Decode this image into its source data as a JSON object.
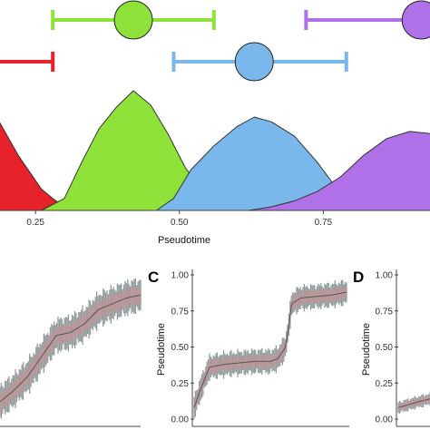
{
  "colors": {
    "red": "#e8222a",
    "green": "#8ee23a",
    "blue": "#7ab7ea",
    "purple": "#b071e8",
    "axis": "#444444",
    "box_fill": "#b99497",
    "whisker": "#8f9a9a",
    "median": "#555555"
  },
  "chart_data": [
    {
      "panel": "top",
      "type": "area",
      "subtype": "density",
      "xlabel": "Pseudotime",
      "x_ticks": [
        "0.25",
        "0.50",
        "0.75"
      ],
      "x_tick_values": [
        0.25,
        0.5,
        0.75
      ],
      "xlim": [
        0.1,
        1.0
      ],
      "y_axis_shown": false,
      "grid": false,
      "series": [
        {
          "color": "#e8222a",
          "mean": 0.1,
          "interval": [
            0.1,
            0.28
          ],
          "density": [
            [
              0.1,
              0.98
            ],
            [
              0.14,
              1.0
            ],
            [
              0.18,
              0.8
            ],
            [
              0.22,
              0.46
            ],
            [
              0.26,
              0.18
            ],
            [
              0.28,
              0.1
            ],
            [
              0.3,
              0.03
            ],
            [
              0.32,
              0.0
            ]
          ]
        },
        {
          "color": "#8ee23a",
          "mean": 0.42,
          "interval": [
            0.28,
            0.56
          ],
          "density": [
            [
              0.26,
              0.0
            ],
            [
              0.3,
              0.1
            ],
            [
              0.33,
              0.4
            ],
            [
              0.36,
              0.68
            ],
            [
              0.39,
              0.86
            ],
            [
              0.42,
              1.0
            ],
            [
              0.45,
              0.88
            ],
            [
              0.48,
              0.64
            ],
            [
              0.51,
              0.36
            ],
            [
              0.55,
              0.1
            ],
            [
              0.6,
              0.0
            ]
          ]
        },
        {
          "color": "#7ab7ea",
          "mean": 0.63,
          "interval": [
            0.49,
            0.79
          ],
          "density": [
            [
              0.46,
              0.0
            ],
            [
              0.49,
              0.1
            ],
            [
              0.52,
              0.34
            ],
            [
              0.56,
              0.54
            ],
            [
              0.6,
              0.7
            ],
            [
              0.63,
              0.78
            ],
            [
              0.66,
              0.74
            ],
            [
              0.7,
              0.62
            ],
            [
              0.74,
              0.4
            ],
            [
              0.78,
              0.14
            ],
            [
              0.82,
              0.0
            ]
          ]
        },
        {
          "color": "#b071e8",
          "mean": 0.92,
          "interval": [
            0.72,
            1.0
          ],
          "density": [
            [
              0.62,
              0.0
            ],
            [
              0.66,
              0.03
            ],
            [
              0.7,
              0.08
            ],
            [
              0.74,
              0.16
            ],
            [
              0.78,
              0.28
            ],
            [
              0.82,
              0.46
            ],
            [
              0.86,
              0.6
            ],
            [
              0.9,
              0.66
            ],
            [
              0.94,
              0.64
            ],
            [
              0.98,
              0.52
            ],
            [
              1.0,
              0.46
            ]
          ]
        }
      ]
    },
    {
      "panel": "B",
      "type": "bar",
      "subtype": "boxplot-series",
      "ylim": [
        0,
        1
      ],
      "x_range": [
        0.0,
        1.0
      ],
      "median": [
        [
          0.0,
          0.12
        ],
        [
          0.1,
          0.2
        ],
        [
          0.2,
          0.3
        ],
        [
          0.3,
          0.44
        ],
        [
          0.4,
          0.58
        ],
        [
          0.5,
          0.6
        ],
        [
          0.6,
          0.66
        ],
        [
          0.7,
          0.76
        ],
        [
          0.8,
          0.8
        ],
        [
          0.9,
          0.84
        ],
        [
          1.0,
          0.86
        ]
      ],
      "half_width": 0.14
    },
    {
      "panel": "C",
      "letter": "C",
      "type": "bar",
      "subtype": "boxplot-series",
      "ylabel": "Pseudotime",
      "y_ticks": [
        "0.00",
        "0.25",
        "0.50",
        "0.75",
        "1.00"
      ],
      "y_tick_values": [
        0.0,
        0.25,
        0.5,
        0.75,
        1.0
      ],
      "ylim": [
        0,
        1
      ],
      "x_range": [
        0.0,
        1.0
      ],
      "median": [
        [
          0.0,
          0.08
        ],
        [
          0.04,
          0.2
        ],
        [
          0.1,
          0.36
        ],
        [
          0.2,
          0.38
        ],
        [
          0.3,
          0.39
        ],
        [
          0.4,
          0.4
        ],
        [
          0.5,
          0.4
        ],
        [
          0.55,
          0.42
        ],
        [
          0.6,
          0.5
        ],
        [
          0.62,
          0.64
        ],
        [
          0.64,
          0.8
        ],
        [
          0.7,
          0.84
        ],
        [
          0.8,
          0.85
        ],
        [
          0.9,
          0.86
        ],
        [
          1.0,
          0.88
        ]
      ],
      "half_width": 0.1
    },
    {
      "panel": "D",
      "letter": "D",
      "type": "bar",
      "subtype": "boxplot-series",
      "ylabel": "Pseudotime",
      "y_ticks": [
        "0.00",
        "0.25",
        "0.50",
        "0.75",
        "1.00"
      ],
      "y_tick_values": [
        0.0,
        0.25,
        0.5,
        0.75,
        1.0
      ],
      "ylim": [
        0,
        1
      ],
      "x_range": [
        0.0,
        0.25
      ],
      "median": [
        [
          0.0,
          0.08
        ],
        [
          0.08,
          0.1
        ],
        [
          0.16,
          0.12
        ],
        [
          0.25,
          0.14
        ]
      ],
      "half_width": 0.05
    }
  ]
}
